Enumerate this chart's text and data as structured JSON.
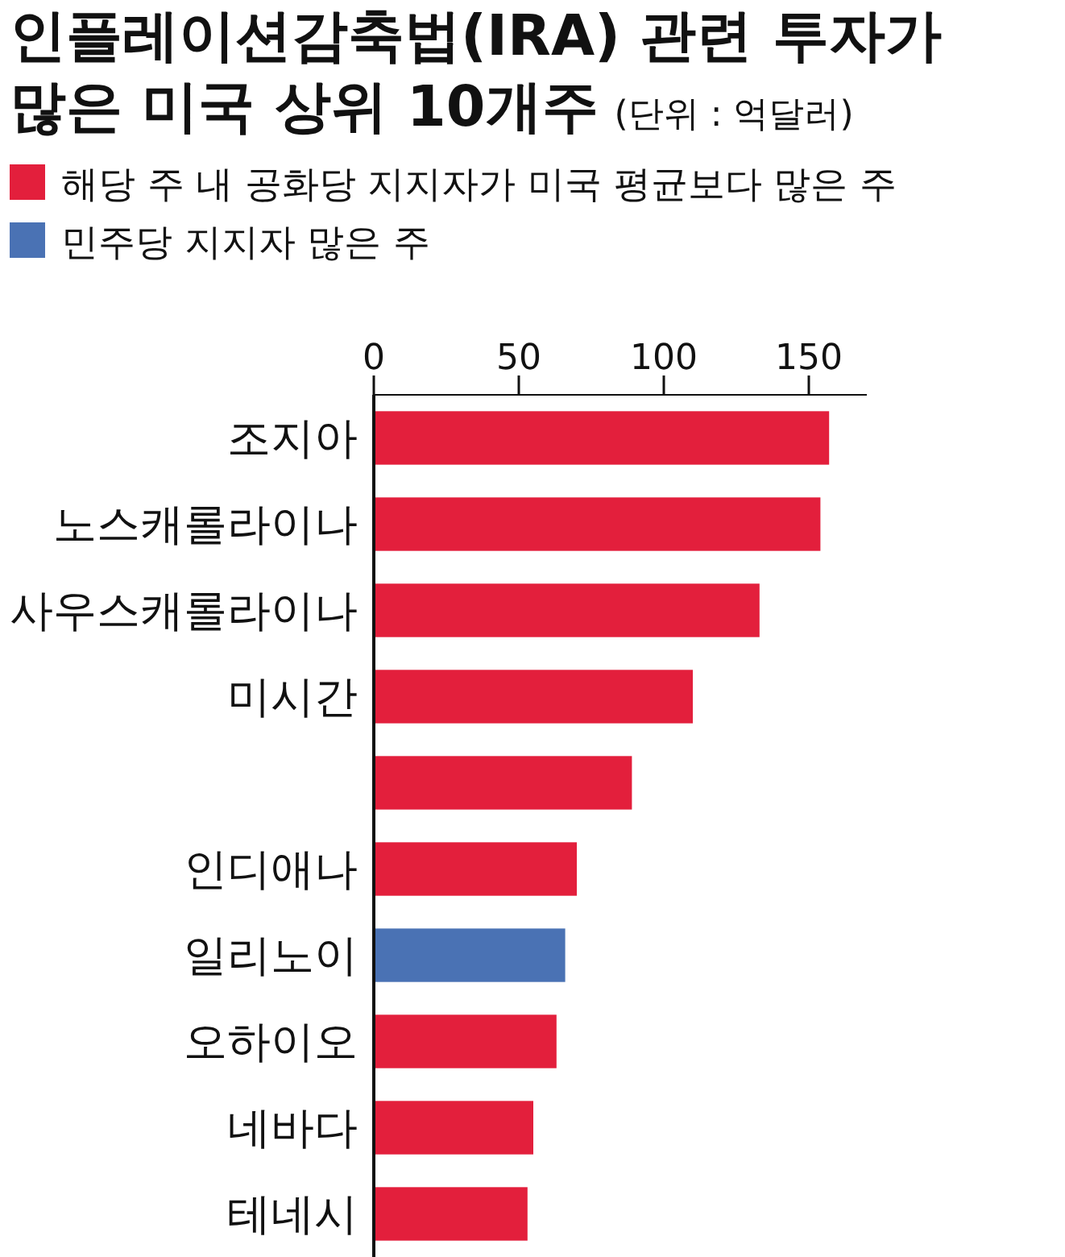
{
  "chart_data": {
    "type": "bar",
    "orientation": "horizontal",
    "title": "인플레이션감축법(IRA) 관련 투자가 많은 미국 상위 10개주",
    "subtitle": "(단위 : 억달러)",
    "categories": [
      "조지아",
      "노스캐롤라이나",
      "사우스캐롤라이나",
      "미시간",
      null,
      "인디애나",
      "일리노이",
      "오하이오",
      "네바다",
      "테네시"
    ],
    "series": [
      {
        "name": "해당 주 내 공화당 지지자가 미국 평균보다 많은 주",
        "color": "#e31f3c",
        "values": [
          157,
          154,
          133,
          110,
          89,
          70,
          null,
          63,
          55,
          53
        ]
      },
      {
        "name": "민주당 지지자 많은 주",
        "color": "#4a72b4",
        "values": [
          null,
          null,
          null,
          null,
          null,
          null,
          66,
          null,
          null,
          null
        ]
      }
    ],
    "xlim": [
      0,
      170
    ],
    "xticks": [
      0,
      50,
      100,
      150
    ],
    "legend": "top",
    "grid": false
  }
}
